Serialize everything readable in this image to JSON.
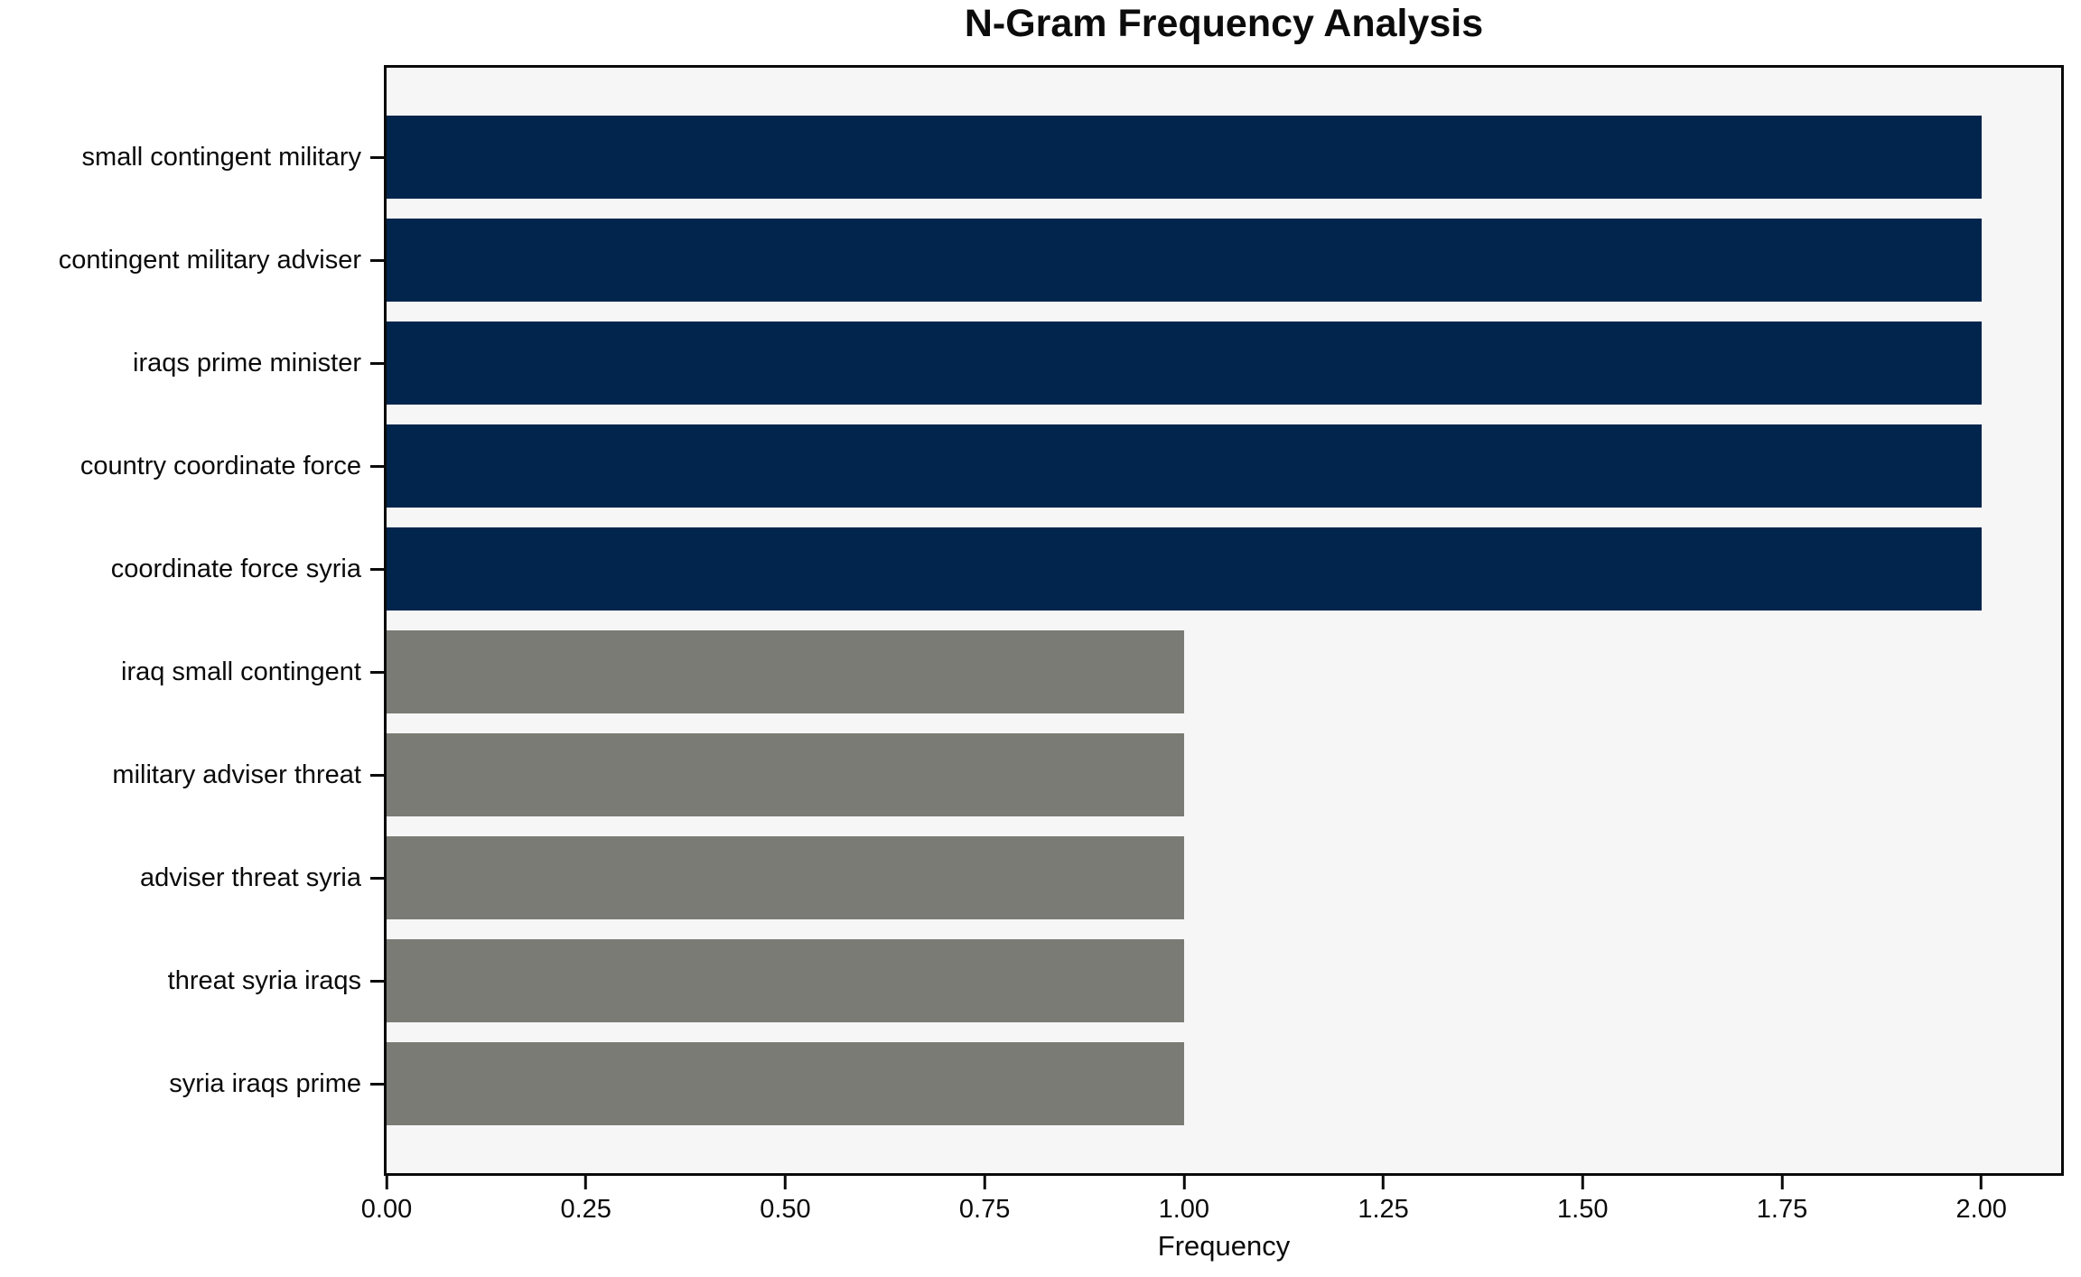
{
  "chart_data": {
    "type": "bar",
    "orientation": "horizontal",
    "title": "N-Gram Frequency Analysis",
    "xlabel": "Frequency",
    "ylabel": "",
    "categories": [
      "small contingent military",
      "contingent military adviser",
      "iraqs prime minister",
      "country coordinate force",
      "coordinate force syria",
      "iraq small contingent",
      "military adviser threat",
      "adviser threat syria",
      "threat syria iraqs",
      "syria iraqs prime"
    ],
    "values": [
      2.0,
      2.0,
      2.0,
      2.0,
      2.0,
      1.0,
      1.0,
      1.0,
      1.0,
      1.0
    ],
    "bar_colors": [
      "#02254d",
      "#02254d",
      "#02254d",
      "#02254d",
      "#02254d",
      "#7b7b76",
      "#7b7b76",
      "#7b7b76",
      "#7b7b76",
      "#7b7b76"
    ],
    "xlim": [
      0,
      2.1
    ],
    "xticks": {
      "values": [
        0.0,
        0.25,
        0.5,
        0.75,
        1.0,
        1.25,
        1.5,
        1.75,
        2.0
      ],
      "labels": [
        "0.00",
        "0.25",
        "0.50",
        "0.75",
        "1.00",
        "1.25",
        "1.50",
        "1.75",
        "2.00"
      ]
    },
    "grid": false,
    "legend": null,
    "colors": {
      "navy_bar": "#02254d",
      "gray_bar": "#7b7b76",
      "plot_background": "#f6f6f6",
      "figure_background": "#ffffff",
      "spine": "#0a0a0a",
      "text": "#0a0a0a"
    }
  }
}
